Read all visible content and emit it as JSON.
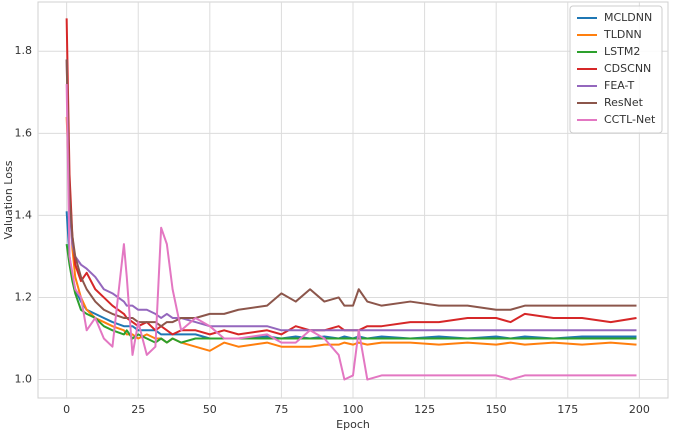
{
  "chart_data": {
    "type": "line",
    "x_label": "Epoch",
    "y_label": "Valuation Loss",
    "x": [
      0,
      1,
      2,
      3,
      5,
      7,
      10,
      13,
      16,
      20,
      21,
      23,
      25,
      28,
      31,
      33,
      35,
      37,
      40,
      45,
      50,
      55,
      60,
      70,
      75,
      80,
      85,
      90,
      95,
      97,
      100,
      102,
      105,
      110,
      120,
      130,
      140,
      150,
      155,
      160,
      170,
      180,
      190,
      199
    ],
    "xlim": [
      -10,
      210
    ],
    "xticks": [
      0,
      25,
      50,
      75,
      100,
      125,
      150,
      175,
      200
    ],
    "ylim": [
      0.955,
      1.92
    ],
    "yticks": [
      {
        "value": 1,
        "label": "1.0"
      },
      1.2,
      1.4,
      1.6,
      1.8
    ],
    "grid": true,
    "legend": "upper right",
    "series": [
      {
        "name": "MCLDNN",
        "color": "#1f77b4",
        "values": [
          1.41,
          1.3,
          1.25,
          1.22,
          1.19,
          1.17,
          1.16,
          1.15,
          1.14,
          1.13,
          1.13,
          1.13,
          1.12,
          1.12,
          1.12,
          1.11,
          1.11,
          1.11,
          1.11,
          1.11,
          1.1,
          1.1,
          1.1,
          1.105,
          1.1,
          1.105,
          1.1,
          1.105,
          1.1,
          1.105,
          1.1,
          1.105,
          1.1,
          1.105,
          1.1,
          1.105,
          1.1,
          1.105,
          1.1,
          1.105,
          1.1,
          1.105,
          1.105,
          1.105
        ]
      },
      {
        "name": "TLDNN",
        "color": "#ff7f0e",
        "values": [
          1.64,
          1.47,
          1.32,
          1.25,
          1.2,
          1.17,
          1.15,
          1.14,
          1.13,
          1.12,
          1.11,
          1.11,
          1.1,
          1.11,
          1.1,
          1.1,
          1.09,
          1.1,
          1.09,
          1.08,
          1.07,
          1.09,
          1.08,
          1.09,
          1.08,
          1.08,
          1.08,
          1.085,
          1.085,
          1.09,
          1.085,
          1.09,
          1.085,
          1.09,
          1.09,
          1.085,
          1.09,
          1.085,
          1.09,
          1.085,
          1.09,
          1.085,
          1.09,
          1.085
        ]
      },
      {
        "name": "LSTM2",
        "color": "#2ca02c",
        "values": [
          1.33,
          1.28,
          1.24,
          1.21,
          1.17,
          1.16,
          1.15,
          1.13,
          1.12,
          1.11,
          1.12,
          1.1,
          1.11,
          1.1,
          1.09,
          1.1,
          1.09,
          1.1,
          1.09,
          1.1,
          1.1,
          1.1,
          1.1,
          1.1,
          1.1,
          1.1,
          1.1,
          1.1,
          1.1,
          1.1,
          1.1,
          1.1,
          1.1,
          1.1,
          1.1,
          1.1,
          1.1,
          1.1,
          1.1,
          1.1,
          1.1,
          1.1,
          1.1,
          1.1
        ]
      },
      {
        "name": "CDSCNN",
        "color": "#d62728",
        "values": [
          1.88,
          1.5,
          1.35,
          1.28,
          1.24,
          1.26,
          1.22,
          1.2,
          1.18,
          1.16,
          1.15,
          1.14,
          1.13,
          1.14,
          1.12,
          1.13,
          1.12,
          1.11,
          1.12,
          1.12,
          1.11,
          1.12,
          1.11,
          1.12,
          1.11,
          1.13,
          1.12,
          1.12,
          1.13,
          1.12,
          1.12,
          1.12,
          1.13,
          1.13,
          1.14,
          1.14,
          1.15,
          1.15,
          1.14,
          1.16,
          1.15,
          1.15,
          1.14,
          1.15
        ]
      },
      {
        "name": "FEA-T",
        "color": "#9467bd",
        "values": [
          1.78,
          1.42,
          1.33,
          1.3,
          1.28,
          1.27,
          1.25,
          1.22,
          1.21,
          1.19,
          1.18,
          1.18,
          1.17,
          1.17,
          1.16,
          1.15,
          1.16,
          1.15,
          1.15,
          1.14,
          1.13,
          1.13,
          1.13,
          1.13,
          1.12,
          1.12,
          1.12,
          1.12,
          1.12,
          1.12,
          1.12,
          1.12,
          1.12,
          1.12,
          1.12,
          1.12,
          1.12,
          1.12,
          1.12,
          1.12,
          1.12,
          1.12,
          1.12,
          1.12
        ]
      },
      {
        "name": "ResNet",
        "color": "#8c564b",
        "values": [
          1.78,
          1.45,
          1.35,
          1.3,
          1.25,
          1.22,
          1.19,
          1.17,
          1.16,
          1.15,
          1.15,
          1.15,
          1.14,
          1.14,
          1.14,
          1.13,
          1.14,
          1.14,
          1.15,
          1.15,
          1.16,
          1.16,
          1.17,
          1.18,
          1.21,
          1.19,
          1.22,
          1.19,
          1.2,
          1.18,
          1.18,
          1.22,
          1.19,
          1.18,
          1.19,
          1.18,
          1.18,
          1.17,
          1.17,
          1.18,
          1.18,
          1.18,
          1.18,
          1.18
        ]
      },
      {
        "name": "CCTL-Net",
        "color": "#e377c2",
        "values": [
          1.72,
          1.3,
          1.26,
          1.22,
          1.2,
          1.12,
          1.15,
          1.1,
          1.08,
          1.33,
          1.25,
          1.06,
          1.14,
          1.06,
          1.08,
          1.37,
          1.33,
          1.22,
          1.12,
          1.15,
          1.13,
          1.1,
          1.1,
          1.11,
          1.09,
          1.09,
          1.12,
          1.1,
          1.06,
          1,
          1.01,
          1.12,
          1,
          1.01,
          1.01,
          1.01,
          1.01,
          1.01,
          1,
          1.01,
          1.01,
          1.01,
          1.01,
          1.01
        ]
      }
    ]
  }
}
